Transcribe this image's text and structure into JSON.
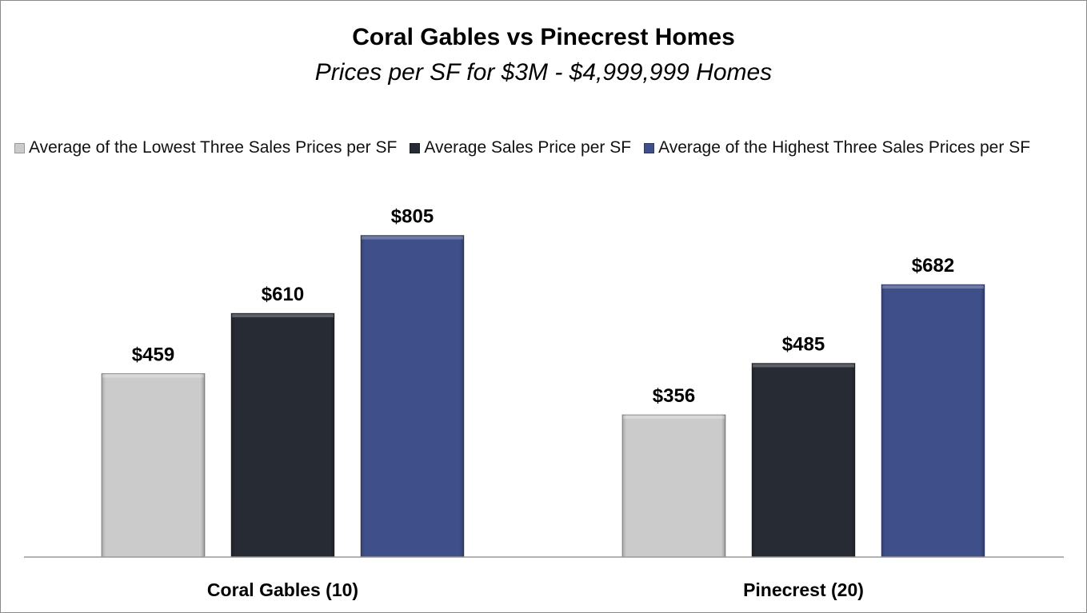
{
  "chart_data": {
    "type": "bar",
    "title": "Coral Gables vs Pinecrest Homes",
    "subtitle": "Prices per SF for $3M - $4,999,999 Homes",
    "categories": [
      "Coral Gables (10)",
      "Pinecrest (20)"
    ],
    "series": [
      {
        "name": "Average of the Lowest Three Sales Prices per SF",
        "color": "#cbcbcb",
        "values": [
          459,
          356
        ],
        "labels": [
          "$459",
          "$356"
        ]
      },
      {
        "name": "Average Sales Price per SF",
        "color": "#272b33",
        "values": [
          610,
          485
        ],
        "labels": [
          "$610",
          "$485"
        ]
      },
      {
        "name": "Average of the Highest Three Sales Prices per SF",
        "color": "#3f4f8a",
        "values": [
          805,
          682
        ],
        "labels": [
          "$805",
          "$682"
        ]
      }
    ],
    "xlabel": "",
    "ylabel": "",
    "ylim": [
      0,
      900
    ],
    "grid": false,
    "legend_position": "top"
  }
}
